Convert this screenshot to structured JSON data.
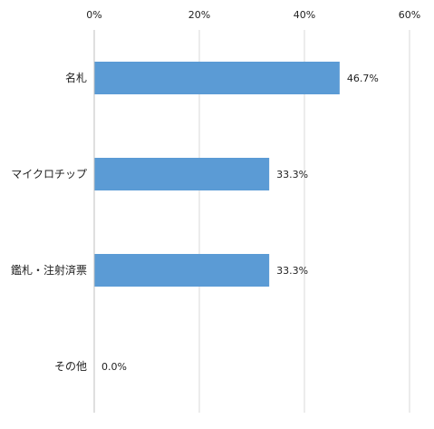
{
  "chart_data": {
    "type": "bar",
    "orientation": "horizontal",
    "categories": [
      "名札",
      "マイクロチップ",
      "鑑札・注射済票",
      "その他"
    ],
    "values": [
      46.7,
      33.3,
      33.3,
      0.0
    ],
    "data_labels": [
      "46.7%",
      "33.3%",
      "33.3%",
      "0.0%"
    ],
    "xlim": [
      0,
      60
    ],
    "x_ticks": [
      0,
      20,
      40,
      60
    ],
    "x_tick_labels": [
      "0%",
      "20%",
      "40%",
      "60%"
    ],
    "x_axis_position": "top",
    "grid": true,
    "legend": "none",
    "bar_color": "#5b9bd5"
  }
}
